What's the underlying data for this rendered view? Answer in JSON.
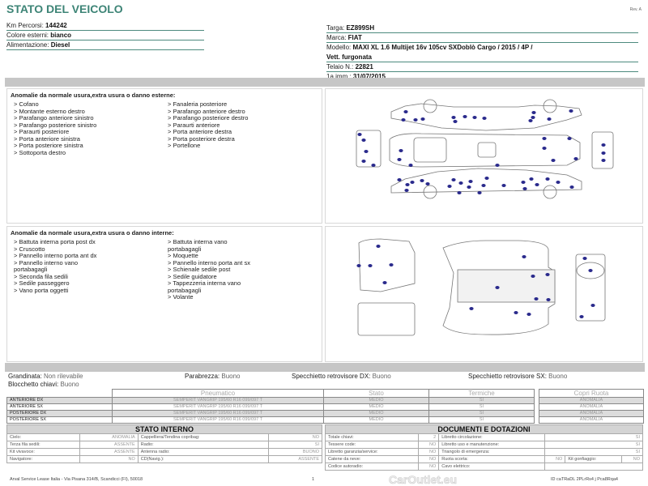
{
  "header": {
    "title": "STATO DEL VEICOLO",
    "rev": "Rev. A"
  },
  "vehicle_left": [
    {
      "label": "Km Percorsi: ",
      "value": "144242"
    },
    {
      "label": "Colore esterni: ",
      "value": "bianco"
    },
    {
      "label": "Alimentazione: ",
      "value": "Diesel"
    }
  ],
  "vehicle_right": [
    {
      "label": "Targa: ",
      "value": "EZ899SH"
    },
    {
      "label": "Marca: ",
      "value": "FIAT"
    },
    {
      "label": "Modello: ",
      "value": "MAXI XL 1.6 Multijet 16v 105cv SXDoblò Cargo / 2015 / 4P /"
    },
    {
      "label": "",
      "value": "Vett. furgonata"
    },
    {
      "label": "Telaio N.: ",
      "value": "22821"
    },
    {
      "label": "1a imm.: ",
      "value": "31/07/2015"
    }
  ],
  "exterior": {
    "heading": "Anomalie da normale usura,extra usura o danno esterne:",
    "col1": [
      "> Cofano",
      "> Montante esterno destro",
      "> Parafango anteriore sinistro",
      "> Parafango posteriore sinistro",
      "> Paraurti posteriore",
      "> Porta anteriore sinistra",
      "> Porta posteriore sinistra",
      "> Sottoporta destro"
    ],
    "col2": [
      "> Fanaleria posteriore",
      "> Parafango anteriore destro",
      "> Parafango posteriore destro",
      "> Paraurti anteriore",
      "> Porta anteriore destra",
      "> Porta posteriore destra",
      "> Portellone"
    ]
  },
  "interior": {
    "heading": "Anomalie da normale usura,extra usura o danno interne:",
    "col1": [
      "> Battuta interna porta post dx",
      "> Cruscotto",
      "> Pannello interno porta ant dx",
      "> Pannello interno vano",
      "portabagagli",
      "> Seconda fila sedili",
      "> Sedile passeggero",
      "> Vano porta oggetti"
    ],
    "col2": [
      "> Battuta interna vano",
      "portabagagli",
      "> Moquette",
      "> Pannello interno porta ant sx",
      "> Schienale sedile post",
      "> Sedile guidatore",
      "> Tappezzeria interna vano",
      "portabagagli",
      "> Volante"
    ]
  },
  "conditions": {
    "grandinata": "Grandinata: ",
    "grandinata_v": "Non rilevabile",
    "blocchetto": "Blocchetto chiavi: ",
    "blocchetto_v": "Buono",
    "parabrezza": "Parabrezza: ",
    "parabrezza_v": "Buono",
    "spec_dx": "Specchietto retrovisore DX: ",
    "spec_dx_v": "Buono",
    "spec_sx": "Specchietto retrovisore SX: ",
    "spec_sx_v": "Buono"
  },
  "tyres": {
    "headers": [
      "Pneumatico",
      "Stato",
      "Termiche"
    ],
    "copri_header": "Copri Ruota",
    "rows": [
      {
        "pos": "ANTERIORE DX",
        "tyre": "SEMPERIT VANGRIP 195/60 R16 099/097 T",
        "stato": "MEDIO",
        "term": "SI",
        "copri": "ANOMALIA"
      },
      {
        "pos": "ANTERIORE SX",
        "tyre": "SEMPERIT VANGRIP 195/60 R16 099/097 T",
        "stato": "MEDIO",
        "term": "SI",
        "copri": "ANOMALIA"
      },
      {
        "pos": "POSTERIORE DX",
        "tyre": "SEMPERIT VANGRIP 195/60 R16 099/097 T",
        "stato": "MEDIO",
        "term": "SI",
        "copri": "ANOMALIA"
      },
      {
        "pos": "POSTERIORE SX",
        "tyre": "SEMPERIT VANGRIP 195/60 R16 099/097 T",
        "stato": "MEDIO",
        "term": "SI",
        "copri": "ANOMALIA"
      }
    ]
  },
  "stato_interno": {
    "title": "STATO INTERNO",
    "rows": [
      [
        "Cielo:",
        "ANOMALIA",
        "Cappelliera/Tendina copribag:",
        "NO"
      ],
      [
        "Terza fila sedili:",
        "ASSENTE",
        "Radio:",
        "SI"
      ],
      [
        "Kit vivavoce:",
        "ASSENTE",
        "Antenna radio:",
        "BUONO"
      ],
      [
        "Navigatore:",
        "NO",
        "CD(Navig.):",
        "ASSENTE"
      ]
    ]
  },
  "documenti": {
    "title": "DOCUMENTI E DOTAZIONI",
    "rows": [
      [
        "Totale chiavi:",
        "2",
        "Libretto circolazione:",
        "SI"
      ],
      [
        "Tessere code:",
        "NO",
        "Libretto uso e manutenzione:",
        "SI"
      ],
      [
        "Libretto garanzia/service:",
        "NO",
        "Triangolo di emergenza:",
        "SI"
      ],
      [
        "Catene da neve:",
        "NO",
        "Ruota scorta:",
        "NO",
        "Kit gonfiaggio:",
        "NO"
      ],
      [
        "Codice autoradio:",
        "NO",
        "Cavo elettrico:",
        ""
      ]
    ]
  },
  "footer": {
    "address": "Arval Service Lease Italia - Via Pisana 314/B, Scandicci (FI), 50018",
    "page": "1",
    "code": "ID caTRaDL 2PLrRs4 j Pca8Rqa4"
  },
  "watermark": "CarOutlet.eu",
  "colors": {
    "title": "#3d8476",
    "dots": "#2a2a8c",
    "bar": "#c6c6c6"
  }
}
